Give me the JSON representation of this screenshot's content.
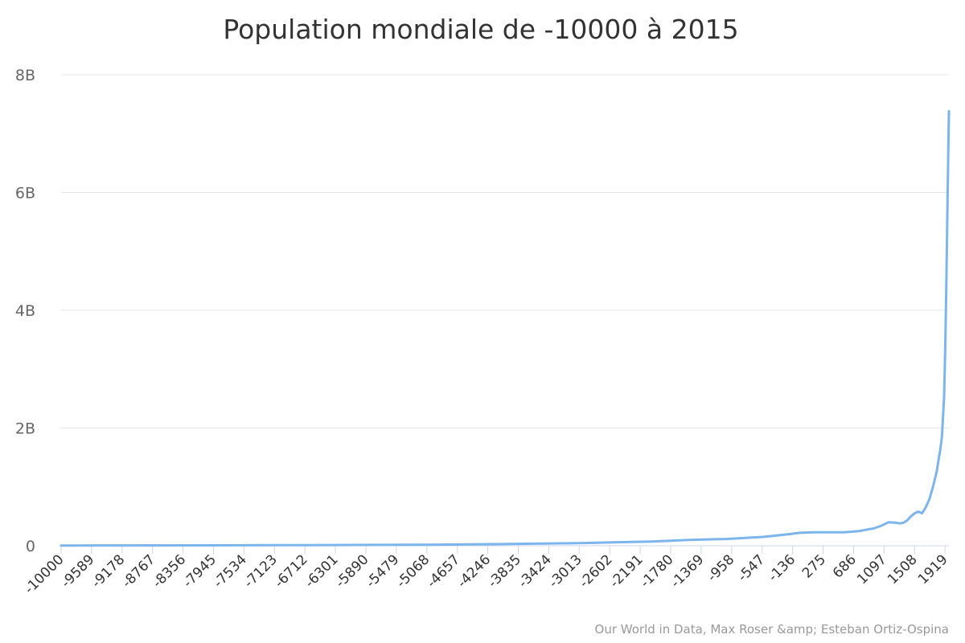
{
  "chart_data": {
    "type": "line",
    "title": "Population mondiale de -10000 à 2015",
    "credit": "Our World in Data, Max Roser &amp; Esteban Ortiz-Ospina",
    "xlabel": "",
    "ylabel": "",
    "ylim": [
      0,
      8000000000
    ],
    "xlim": [
      -10000,
      2015
    ],
    "y_ticks": [
      {
        "value": 0,
        "label": "0"
      },
      {
        "value": 2000000000,
        "label": "2B"
      },
      {
        "value": 4000000000,
        "label": "4B"
      },
      {
        "value": 6000000000,
        "label": "6B"
      },
      {
        "value": 8000000000,
        "label": "8B"
      }
    ],
    "x_tick_labels": [
      "-10000",
      "-9589",
      "-9178",
      "-8767",
      "-8356",
      "-7945",
      "-7534",
      "-7123",
      "-6712",
      "-6301",
      "-5890",
      "-5479",
      "-5068",
      "-4657",
      "-4246",
      "-3835",
      "-3424",
      "-3013",
      "-2602",
      "-2191",
      "-1780",
      "-1369",
      "-958",
      "-547",
      "-136",
      "275",
      "686",
      "1097",
      "1508",
      "1919"
    ],
    "line_color": "#7cb5ec",
    "series": [
      {
        "name": "Population",
        "color": "#7cb5ec",
        "x": [
          -10000,
          -9000,
          -8000,
          -7000,
          -6000,
          -5000,
          -4000,
          -3000,
          -2000,
          -1500,
          -1000,
          -500,
          -200,
          0,
          200,
          400,
          600,
          800,
          1000,
          1100,
          1200,
          1300,
          1350,
          1400,
          1450,
          1500,
          1550,
          1600,
          1650,
          1700,
          1750,
          1800,
          1850,
          1900,
          1910,
          1920,
          1930,
          1940,
          1950,
          1960,
          1970,
          1980,
          1990,
          2000,
          2010,
          2015
        ],
        "values": [
          4432180,
          5000000,
          7000000,
          10000000,
          14000000,
          18000000,
          28000000,
          45000000,
          72000000,
          100000000,
          115000000,
          150000000,
          190000000,
          220000000,
          230000000,
          230000000,
          230000000,
          250000000,
          295000000,
          340000000,
          400000000,
          390000000,
          380000000,
          390000000,
          430000000,
          500000000,
          550000000,
          580000000,
          550000000,
          650000000,
          790000000,
          1000000000,
          1260000000,
          1650000000,
          1750000000,
          1860000000,
          2070000000,
          2300000000,
          2530000000,
          3030000000,
          3700000000,
          4450000000,
          5310000000,
          6140000000,
          6960000000,
          7380000000
        ]
      }
    ]
  }
}
